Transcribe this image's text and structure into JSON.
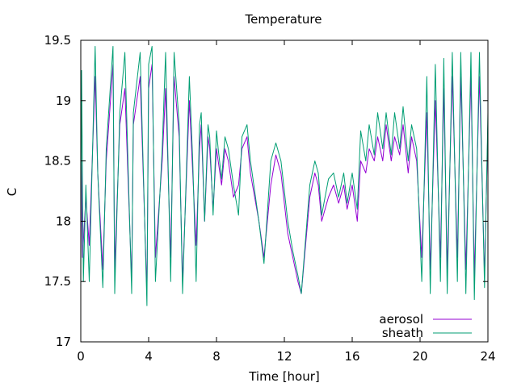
{
  "chart_data": {
    "type": "line",
    "title": "Temperature",
    "xlabel": "Time [hour]",
    "ylabel": "C",
    "xlim": [
      0,
      24
    ],
    "ylim": [
      17,
      19.5
    ],
    "xticks": [
      0,
      4,
      8,
      12,
      16,
      20,
      24
    ],
    "xtick_labels": [
      "0",
      "4",
      "8",
      "12",
      "16",
      "20",
      "24"
    ],
    "yticks": [
      17,
      17.5,
      18,
      18.5,
      19,
      19.5
    ],
    "ytick_labels": [
      "17",
      "17.5",
      "18",
      "18.5",
      "19",
      "19.5"
    ],
    "grid": false,
    "legend_position": "bottom-right",
    "series": [
      {
        "name": "aerosol",
        "color": "#9400d3",
        "x": [
          0,
          0.1,
          0.3,
          0.5,
          0.85,
          1.0,
          1.3,
          1.5,
          1.9,
          2.0,
          2.3,
          2.6,
          3.0,
          3.1,
          3.5,
          3.9,
          4.0,
          4.2,
          4.4,
          4.8,
          5.0,
          5.3,
          5.5,
          5.8,
          6.0,
          6.4,
          6.6,
          6.8,
          7.0,
          7.1,
          7.3,
          7.5,
          7.6,
          7.8,
          8.0,
          8.1,
          8.3,
          8.5,
          8.7,
          9.0,
          9.3,
          9.5,
          9.8,
          10.0,
          10.5,
          10.8,
          11.2,
          11.5,
          11.8,
          12.2,
          12.5,
          12.8,
          13.0,
          13.5,
          13.8,
          14.0,
          14.2,
          14.6,
          14.9,
          15.2,
          15.5,
          15.7,
          16.0,
          16.3,
          16.5,
          16.8,
          17.0,
          17.3,
          17.5,
          17.8,
          18.0,
          18.3,
          18.5,
          18.8,
          19.0,
          19.3,
          19.5,
          19.8,
          20.1,
          20.4,
          20.6,
          20.9,
          21.2,
          21.4,
          21.6,
          21.9,
          22.2,
          22.4,
          22.7,
          23.0,
          23.2,
          23.5,
          23.8,
          24.0
        ],
        "y": [
          18.8,
          17.7,
          18.2,
          17.8,
          19.2,
          18.4,
          17.6,
          18.5,
          19.3,
          17.6,
          18.8,
          19.1,
          17.5,
          18.8,
          19.2,
          17.4,
          19.1,
          19.3,
          17.7,
          18.5,
          19.1,
          17.7,
          19.2,
          18.7,
          17.5,
          19.0,
          18.4,
          17.8,
          18.6,
          18.8,
          18.0,
          18.7,
          18.6,
          18.1,
          18.6,
          18.5,
          18.3,
          18.6,
          18.5,
          18.2,
          18.3,
          18.6,
          18.7,
          18.4,
          18.0,
          17.7,
          18.3,
          18.55,
          18.4,
          17.9,
          17.7,
          17.5,
          17.4,
          18.2,
          18.4,
          18.3,
          18.0,
          18.2,
          18.3,
          18.15,
          18.3,
          18.1,
          18.3,
          18.0,
          18.5,
          18.4,
          18.6,
          18.5,
          18.7,
          18.5,
          18.8,
          18.5,
          18.7,
          18.55,
          18.8,
          18.4,
          18.7,
          18.5,
          17.7,
          18.9,
          17.6,
          19.0,
          17.7,
          19.1,
          17.6,
          19.2,
          17.7,
          19.2,
          17.6,
          19.2,
          17.55,
          19.2,
          17.55,
          18.8
        ]
      },
      {
        "name": "sheath",
        "color": "#009e73",
        "x": [
          0,
          0.05,
          0.15,
          0.3,
          0.5,
          0.85,
          1.0,
          1.3,
          1.5,
          1.9,
          2.0,
          2.3,
          2.6,
          3.0,
          3.1,
          3.5,
          3.9,
          4.0,
          4.2,
          4.4,
          4.8,
          5.0,
          5.3,
          5.5,
          5.8,
          6.0,
          6.4,
          6.6,
          6.8,
          7.0,
          7.1,
          7.3,
          7.5,
          7.6,
          7.8,
          8.0,
          8.1,
          8.3,
          8.5,
          8.7,
          9.0,
          9.3,
          9.5,
          9.8,
          10.0,
          10.5,
          10.8,
          11.2,
          11.5,
          11.8,
          12.2,
          12.5,
          12.8,
          13.0,
          13.5,
          13.8,
          14.0,
          14.2,
          14.6,
          14.9,
          15.2,
          15.5,
          15.7,
          16.0,
          16.3,
          16.5,
          16.8,
          17.0,
          17.3,
          17.5,
          17.8,
          18.0,
          18.3,
          18.5,
          18.8,
          19.0,
          19.3,
          19.5,
          19.8,
          20.1,
          20.4,
          20.6,
          20.9,
          21.2,
          21.4,
          21.6,
          21.9,
          22.2,
          22.4,
          22.7,
          23.0,
          23.2,
          23.5,
          23.8,
          24.0
        ],
        "y": [
          17.5,
          19.25,
          17.5,
          18.3,
          17.5,
          19.45,
          18.4,
          17.45,
          18.6,
          19.45,
          17.4,
          18.9,
          19.4,
          17.4,
          18.9,
          19.4,
          17.3,
          19.3,
          19.45,
          17.5,
          18.6,
          19.4,
          17.5,
          19.4,
          18.8,
          17.4,
          19.2,
          18.5,
          17.5,
          18.8,
          18.9,
          18.0,
          18.8,
          18.7,
          18.05,
          18.75,
          18.6,
          18.35,
          18.7,
          18.6,
          18.3,
          18.05,
          18.7,
          18.8,
          18.5,
          18.0,
          17.65,
          18.5,
          18.65,
          18.5,
          18.0,
          17.75,
          17.55,
          17.4,
          18.3,
          18.5,
          18.4,
          18.05,
          18.35,
          18.4,
          18.2,
          18.4,
          18.15,
          18.4,
          18.1,
          18.75,
          18.5,
          18.8,
          18.55,
          18.9,
          18.6,
          18.9,
          18.55,
          18.9,
          18.6,
          18.95,
          18.5,
          18.8,
          18.6,
          17.5,
          19.2,
          17.4,
          19.3,
          17.5,
          19.35,
          17.4,
          19.4,
          17.5,
          19.4,
          17.4,
          19.4,
          17.35,
          19.4,
          17.45,
          18.9
        ]
      }
    ]
  }
}
